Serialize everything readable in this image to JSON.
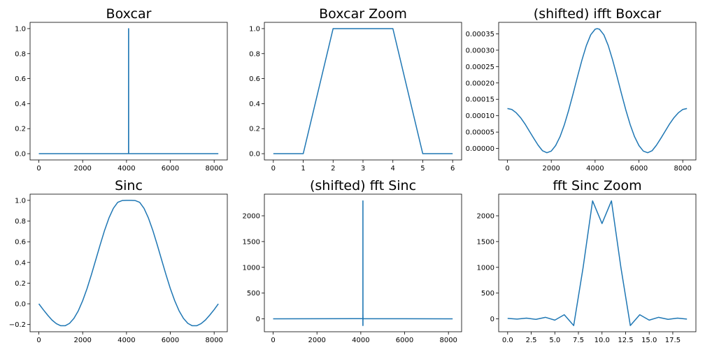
{
  "chart_data": [
    {
      "type": "line",
      "title": "Boxcar",
      "xlim": [
        -400,
        8600
      ],
      "ylim": [
        -0.05,
        1.05
      ],
      "xticks": [
        0,
        2000,
        4000,
        6000,
        8000
      ],
      "xtick_labels": [
        "0",
        "2000",
        "4000",
        "6000",
        "8000"
      ],
      "yticks": [
        0.0,
        0.2,
        0.4,
        0.6,
        0.8,
        1.0
      ],
      "ytick_labels": [
        "0.0",
        "0.2",
        "0.4",
        "0.6",
        "0.8",
        "1.0"
      ],
      "grid": false,
      "color": "#1f77b4",
      "x": [
        0,
        4093,
        4094,
        4098,
        4099,
        8191
      ],
      "y": [
        0,
        0,
        1,
        1,
        0,
        0
      ]
    },
    {
      "type": "line",
      "title": "Boxcar Zoom",
      "xlim": [
        -0.3,
        6.3
      ],
      "ylim": [
        -0.05,
        1.05
      ],
      "xticks": [
        0,
        1,
        2,
        3,
        4,
        5,
        6
      ],
      "xtick_labels": [
        "0",
        "1",
        "2",
        "3",
        "4",
        "5",
        "6"
      ],
      "yticks": [
        0.0,
        0.2,
        0.4,
        0.6,
        0.8,
        1.0
      ],
      "ytick_labels": [
        "0.0",
        "0.2",
        "0.4",
        "0.6",
        "0.8",
        "1.0"
      ],
      "grid": false,
      "color": "#1f77b4",
      "x": [
        0,
        1,
        2,
        3,
        4,
        5,
        6
      ],
      "y": [
        0,
        0,
        1,
        1,
        1,
        0,
        0
      ]
    },
    {
      "type": "line",
      "title": "(shifted) ifft Boxcar",
      "xlim": [
        -400,
        8600
      ],
      "ylim": [
        -3.5e-05,
        0.000385
      ],
      "xticks": [
        0,
        2000,
        4000,
        6000,
        8000
      ],
      "xtick_labels": [
        "0",
        "2000",
        "4000",
        "6000",
        "8000"
      ],
      "yticks": [
        0.0,
        5e-05,
        0.0001,
        0.00015,
        0.0002,
        0.00025,
        0.0003,
        0.00035
      ],
      "ytick_labels": [
        "0.00000",
        "0.00005",
        "0.00010",
        "0.00015",
        "0.00020",
        "0.00025",
        "0.00030",
        "0.00035"
      ],
      "grid": false,
      "color": "#1f77b4",
      "x": [
        0,
        200,
        400,
        600,
        800,
        1000,
        1200,
        1400,
        1600,
        1800,
        2000,
        2200,
        2400,
        2600,
        2800,
        3000,
        3200,
        3400,
        3600,
        3800,
        4000,
        4096,
        4200,
        4400,
        4600,
        4800,
        5000,
        5200,
        5400,
        5600,
        5800,
        6000,
        6200,
        6400,
        6600,
        6800,
        7000,
        7200,
        7400,
        7600,
        7800,
        8000,
        8191
      ],
      "y": [
        0.000122,
        0.000119,
        0.000109,
        9.4e-05,
        7.5e-05,
        5.3e-05,
        3.1e-05,
        1e-05,
        -7e-06,
        -1.3e-05,
        -8e-06,
        9e-06,
        3.6e-05,
        7.3e-05,
        0.000118,
        0.000168,
        0.00022,
        0.00027,
        0.000314,
        0.000347,
        0.000364,
        0.000366,
        0.000364,
        0.000347,
        0.000314,
        0.00027,
        0.00022,
        0.000168,
        0.000118,
        7.3e-05,
        3.6e-05,
        9e-06,
        -8e-06,
        -1.3e-05,
        -7e-06,
        1e-05,
        3.1e-05,
        5.3e-05,
        7.5e-05,
        9.4e-05,
        0.000109,
        0.000119,
        0.000122
      ]
    },
    {
      "type": "line",
      "title": "Sinc",
      "xlim": [
        -400,
        8600
      ],
      "ylim": [
        -0.27,
        1.06
      ],
      "xticks": [
        0,
        2000,
        4000,
        6000,
        8000
      ],
      "xtick_labels": [
        "0",
        "2000",
        "4000",
        "6000",
        "8000"
      ],
      "yticks": [
        -0.2,
        0.0,
        0.2,
        0.4,
        0.6,
        0.8,
        1.0
      ],
      "ytick_labels": [
        "−0.2",
        "0.0",
        "0.2",
        "0.4",
        "0.6",
        "0.8",
        "1.0"
      ],
      "grid": false,
      "color": "#1f77b4",
      "x": [
        0,
        200,
        400,
        600,
        800,
        1000,
        1200,
        1400,
        1600,
        1800,
        2000,
        2200,
        2400,
        2600,
        2800,
        3000,
        3200,
        3400,
        3600,
        3800,
        4000,
        4096,
        4200,
        4400,
        4600,
        4800,
        5000,
        5200,
        5400,
        5600,
        5800,
        6000,
        6200,
        6400,
        6600,
        6800,
        7000,
        7200,
        7400,
        7600,
        7800,
        8000,
        8191
      ],
      "y": [
        0.0,
        -0.056,
        -0.109,
        -0.157,
        -0.192,
        -0.212,
        -0.212,
        -0.189,
        -0.141,
        -0.068,
        0.03,
        0.148,
        0.283,
        0.427,
        0.572,
        0.71,
        0.83,
        0.923,
        0.981,
        0.998,
        1.0,
        1.0,
        1.0,
        0.998,
        0.981,
        0.923,
        0.83,
        0.71,
        0.572,
        0.427,
        0.283,
        0.148,
        0.03,
        -0.068,
        -0.141,
        -0.189,
        -0.212,
        -0.212,
        -0.192,
        -0.157,
        -0.109,
        -0.056,
        0.0
      ]
    },
    {
      "type": "line",
      "title": "(shifted) fft Sinc",
      "xlim": [
        -400,
        8600
      ],
      "ylim": [
        -250,
        2420
      ],
      "xticks": [
        0,
        2000,
        4000,
        6000,
        8000
      ],
      "xtick_labels": [
        "0",
        "2000",
        "4000",
        "6000",
        "8000"
      ],
      "yticks": [
        0,
        500,
        1000,
        1500,
        2000
      ],
      "ytick_labels": [
        "0",
        "500",
        "1000",
        "1500",
        "2000"
      ],
      "grid": false,
      "color": "#1f77b4",
      "x": [
        0,
        4088,
        4089,
        4090,
        4091,
        4092,
        4093,
        4094,
        4095,
        4096,
        4097,
        4098,
        4099,
        4100,
        4101,
        4102,
        4103,
        4104,
        8191
      ],
      "y": [
        0,
        5,
        -10,
        15,
        -10,
        30,
        -25,
        80,
        -130,
        2290,
        1850,
        2290,
        -130,
        80,
        -25,
        30,
        -10,
        5,
        0
      ]
    },
    {
      "type": "line",
      "title": "fft Sinc Zoom",
      "xlim": [
        -0.95,
        19.95
      ],
      "ylim": [
        -250,
        2420
      ],
      "xticks": [
        0.0,
        2.5,
        5.0,
        7.5,
        10.0,
        12.5,
        15.0,
        17.5
      ],
      "xtick_labels": [
        "0.0",
        "2.5",
        "5.0",
        "7.5",
        "10.0",
        "12.5",
        "15.0",
        "17.5"
      ],
      "yticks": [
        0,
        500,
        1000,
        1500,
        2000
      ],
      "ytick_labels": [
        "0",
        "500",
        "1000",
        "1500",
        "2000"
      ],
      "grid": false,
      "color": "#1f77b4",
      "x": [
        0,
        1,
        2,
        3,
        4,
        5,
        6,
        7,
        8,
        9,
        10,
        11,
        12,
        13,
        14,
        15,
        16,
        17,
        18,
        19
      ],
      "y": [
        10,
        -5,
        15,
        -10,
        30,
        -25,
        80,
        -130,
        1000,
        2290,
        1850,
        2290,
        1000,
        -130,
        80,
        -25,
        30,
        -10,
        15,
        -5
      ]
    }
  ]
}
